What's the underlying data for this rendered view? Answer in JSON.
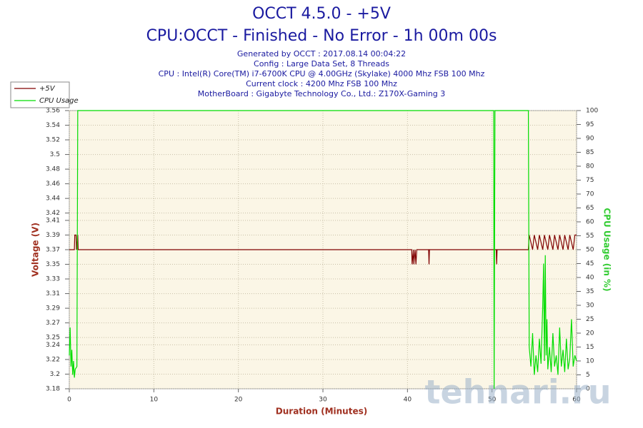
{
  "chart_data": {
    "type": "line",
    "title": "OCCT 4.5.0 - +5V",
    "subtitle": "CPU:OCCT - Finished - No Error - 1h 00m 00s",
    "info": [
      "Generated by OCCT : 2017.08.14 00:04:22",
      "Config : Large Data Set, 8 Threads",
      "CPU : Intel(R) Core(TM) i7-6700K CPU @ 4.00GHz (Skylake) 4000 Mhz FSB 100 Mhz",
      "Current clock : 4200 Mhz FSB 100 Mhz",
      "MotherBoard : Gigabyte Technology Co., Ltd.: Z170X-Gaming 3"
    ],
    "x_label": "Duration (Minutes)",
    "y_label": "Voltage (V)",
    "y2_label": "CPU Usage (in %)",
    "watermark": "tehnari.ru",
    "grid": true,
    "legend": "top-left",
    "xlim": [
      0,
      60
    ],
    "xticks": [
      0,
      10,
      20,
      30,
      40,
      50,
      60
    ],
    "ylim": [
      3.18,
      3.56
    ],
    "yticks": [
      3.18,
      3.2,
      3.22,
      3.24,
      3.25,
      3.27,
      3.29,
      3.31,
      3.33,
      3.35,
      3.37,
      3.39,
      3.41,
      3.42,
      3.44,
      3.46,
      3.48,
      3.5,
      3.52,
      3.54,
      3.56
    ],
    "y2lim": [
      0,
      100
    ],
    "y2ticks": [
      0,
      5,
      10,
      15,
      20,
      25,
      30,
      35,
      40,
      45,
      50,
      55,
      60,
      65,
      70,
      75,
      80,
      85,
      90,
      95,
      100
    ],
    "series": [
      {
        "name": "+5V",
        "color": "#800000",
        "x": [
          0,
          0.6,
          0.65,
          0.8,
          0.85,
          1.0,
          1.05,
          40.5,
          40.55,
          40.7,
          40.75,
          40.9,
          41.0,
          41.1,
          42.5,
          42.55,
          42.6,
          50.5,
          50.55,
          50.6,
          54.3,
          54.4,
          54.8,
          55.0,
          55.4,
          55.6,
          56.0,
          56.2,
          56.6,
          56.8,
          57.2,
          57.4,
          57.8,
          58.0,
          58.4,
          58.6,
          59.0,
          59.2,
          59.6,
          59.8,
          60
        ],
        "values": [
          3.37,
          3.37,
          3.39,
          3.39,
          3.37,
          3.39,
          3.37,
          3.37,
          3.35,
          3.37,
          3.35,
          3.37,
          3.35,
          3.37,
          3.37,
          3.35,
          3.37,
          3.37,
          3.35,
          3.37,
          3.37,
          3.39,
          3.37,
          3.39,
          3.37,
          3.39,
          3.37,
          3.39,
          3.37,
          3.39,
          3.37,
          3.39,
          3.37,
          3.39,
          3.37,
          3.39,
          3.37,
          3.39,
          3.37,
          3.39,
          3.39
        ]
      },
      {
        "name": "CPU Usage",
        "color": "#00dd00",
        "axis": "y2",
        "x": [
          0,
          0.1,
          0.2,
          0.3,
          0.4,
          0.5,
          0.6,
          0.7,
          0.9,
          1.0,
          50.2,
          50.25,
          50.35,
          54.3,
          54.4,
          54.6,
          54.8,
          55,
          55.2,
          55.4,
          55.6,
          55.8,
          56,
          56.1,
          56.2,
          56.3,
          56.4,
          56.5,
          56.6,
          56.8,
          57,
          57.2,
          57.4,
          57.6,
          57.8,
          58,
          58.2,
          58.4,
          58.6,
          58.8,
          59,
          59.2,
          59.4,
          59.6,
          59.8,
          60
        ],
        "values": [
          12,
          22,
          8,
          14,
          5,
          10,
          4,
          7,
          8,
          100,
          100,
          0,
          100,
          100,
          15,
          8,
          20,
          5,
          12,
          6,
          18,
          9,
          30,
          45,
          10,
          48,
          12,
          25,
          7,
          15,
          6,
          20,
          8,
          12,
          5,
          22,
          8,
          14,
          6,
          18,
          7,
          11,
          25,
          8,
          12,
          10
        ]
      }
    ]
  }
}
